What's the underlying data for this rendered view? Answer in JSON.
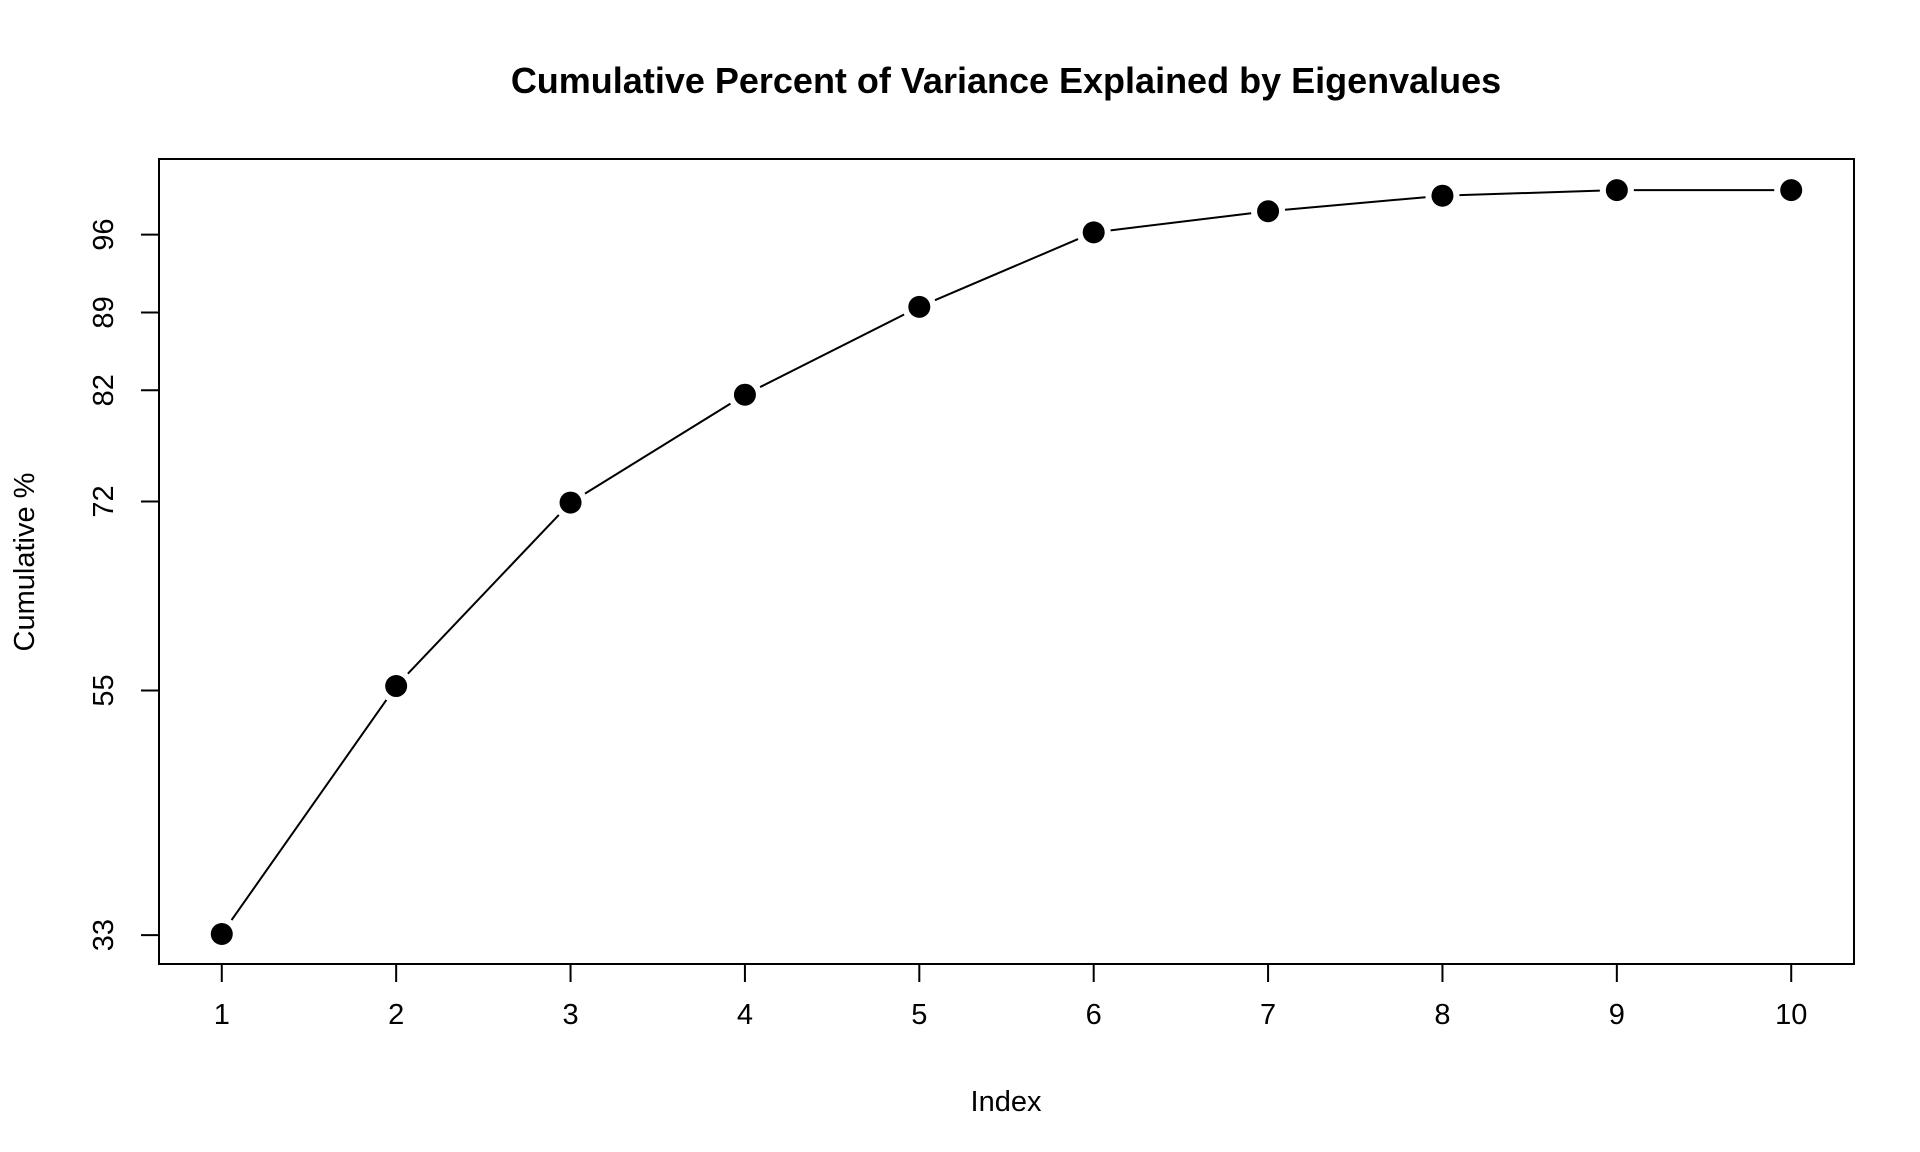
{
  "chart_data": {
    "type": "line",
    "title": "Cumulative Percent of Variance Explained by Eigenvalues",
    "xlabel": "Index",
    "ylabel": "Cumulative %",
    "x": [
      1,
      2,
      3,
      4,
      5,
      6,
      7,
      8,
      9,
      10
    ],
    "x_ticks": [
      "1",
      "2",
      "3",
      "4",
      "5",
      "6",
      "7",
      "8",
      "9",
      "10"
    ],
    "y_ticks": [
      "33",
      "55",
      "72",
      "82",
      "89",
      "96"
    ],
    "y_tick_values": [
      33,
      55,
      72,
      82,
      89,
      96
    ],
    "series": [
      {
        "values": [
          33.1,
          55.4,
          71.9,
          81.6,
          89.5,
          96.2,
          98.1,
          99.5,
          100,
          100
        ]
      }
    ],
    "xlim": [
      0.64,
      10.36
    ],
    "ylim": [
      30.4,
      102.8
    ],
    "grid": false,
    "markers": "filled-circle",
    "colors": {
      "line": "#000000",
      "marker": "#000000",
      "frame": "#000000"
    }
  }
}
